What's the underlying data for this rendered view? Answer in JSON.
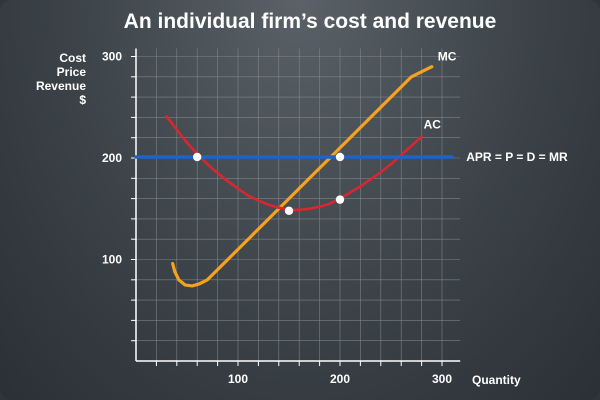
{
  "chart_data": {
    "type": "line",
    "title": "An individual firm’s cost  and revenue",
    "ylabel_lines": [
      "Cost",
      "Price",
      "Revenue",
      "$"
    ],
    "xlabel": "Quantity",
    "xlim": [
      0,
      310
    ],
    "ylim": [
      0,
      300
    ],
    "x_ticks": [
      100,
      200,
      300
    ],
    "y_ticks": [
      100,
      200,
      300
    ],
    "grid": true,
    "colors": {
      "mc": "#f6a21e",
      "ac": "#d9262f",
      "mr": "#1e63c8",
      "grid": "#8a9096",
      "axis": "#ffffff",
      "points": "#ffffff"
    },
    "series": [
      {
        "name": "MC",
        "key": "mc",
        "x": [
          36,
          38,
          42,
          48,
          55,
          62,
          70,
          90,
          110,
          130,
          150,
          170,
          190,
          210,
          230,
          250,
          270,
          290
        ],
        "y": [
          96,
          88,
          80,
          75,
          74,
          76,
          80,
          100,
          120,
          140,
          160,
          180,
          200,
          220,
          240,
          260,
          280,
          290
        ]
      },
      {
        "name": "AC",
        "key": "ac",
        "x": [
          30,
          40,
          50,
          60,
          70,
          80,
          90,
          100,
          110,
          120,
          130,
          140,
          150,
          160,
          170,
          180,
          190,
          200,
          210,
          220,
          230,
          240,
          250,
          260,
          270,
          280
        ],
        "y": [
          241,
          228,
          215,
          204,
          194,
          185,
          177,
          170,
          163,
          158,
          154,
          151,
          149,
          149,
          150,
          152,
          155,
          160,
          166,
          172,
          179,
          186,
          194,
          203,
          212,
          221
        ]
      },
      {
        "name": "APR = P = D = MR",
        "key": "mr",
        "x": [
          0,
          310
        ],
        "y": [
          201,
          201
        ]
      }
    ],
    "points": [
      {
        "x": 60,
        "y": 201
      },
      {
        "x": 150,
        "y": 148
      },
      {
        "x": 200,
        "y": 201
      },
      {
        "x": 200,
        "y": 159
      }
    ]
  }
}
